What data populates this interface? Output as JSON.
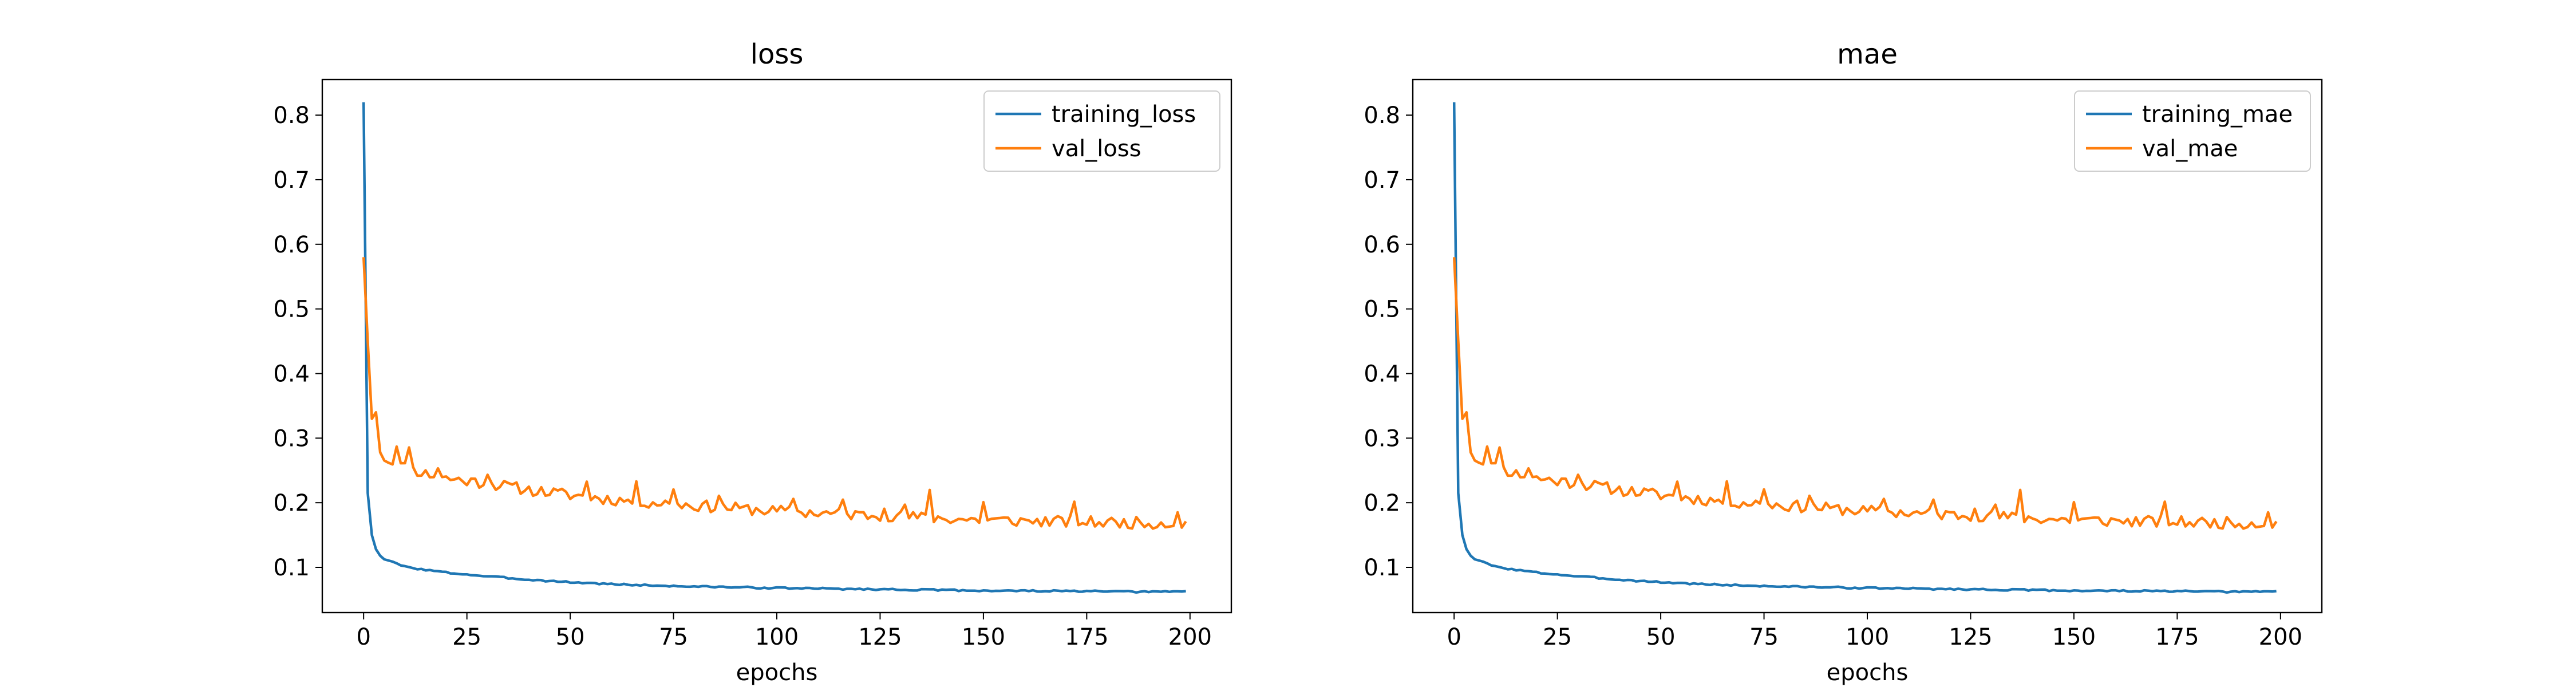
{
  "chart_data": [
    {
      "type": "line",
      "title": "loss",
      "xlabel": "epochs",
      "ylabel": "",
      "xlim": [
        -10,
        210
      ],
      "ylim": [
        0.03,
        0.855
      ],
      "xticks": [
        0,
        25,
        50,
        75,
        100,
        125,
        150,
        175,
        200
      ],
      "yticks": [
        0.1,
        0.2,
        0.3,
        0.4,
        0.5,
        0.6,
        0.7,
        0.8
      ],
      "grid": false,
      "legend_position": "top-right",
      "series": [
        {
          "name": "training_loss",
          "color": "#1f77b4",
          "anchors": [
            [
              0,
              0.82
            ],
            [
              1,
              0.215
            ],
            [
              2,
              0.15
            ],
            [
              3,
              0.128
            ],
            [
              4,
              0.118
            ],
            [
              5,
              0.113
            ],
            [
              7,
              0.108
            ],
            [
              10,
              0.101
            ],
            [
              15,
              0.096
            ],
            [
              20,
              0.092
            ],
            [
              30,
              0.086
            ],
            [
              40,
              0.081
            ],
            [
              50,
              0.077
            ],
            [
              60,
              0.074
            ],
            [
              75,
              0.071
            ],
            [
              100,
              0.068
            ],
            [
              125,
              0.066
            ],
            [
              150,
              0.064
            ],
            [
              175,
              0.063
            ],
            [
              190,
              0.062
            ],
            [
              199,
              0.063
            ]
          ],
          "noise": 0.0012,
          "seed": 3
        },
        {
          "name": "val_loss",
          "color": "#ff7f0e",
          "anchors": [
            [
              0,
              0.58
            ],
            [
              1,
              0.45
            ],
            [
              2,
              0.33
            ],
            [
              3,
              0.34
            ],
            [
              4,
              0.278
            ],
            [
              5,
              0.27
            ],
            [
              7,
              0.262
            ],
            [
              10,
              0.255
            ],
            [
              15,
              0.245
            ],
            [
              20,
              0.238
            ],
            [
              30,
              0.23
            ],
            [
              40,
              0.22
            ],
            [
              50,
              0.212
            ],
            [
              60,
              0.205
            ],
            [
              75,
              0.198
            ],
            [
              100,
              0.187
            ],
            [
              125,
              0.18
            ],
            [
              150,
              0.173
            ],
            [
              175,
              0.17
            ],
            [
              199,
              0.168
            ]
          ],
          "noise": 0.009,
          "seed": 11,
          "spikes": [
            [
              8,
              0.035
            ],
            [
              11,
              0.04
            ],
            [
              18,
              0.015
            ],
            [
              30,
              0.02
            ],
            [
              54,
              0.025
            ],
            [
              66,
              0.022
            ],
            [
              75,
              0.028
            ],
            [
              86,
              0.02
            ],
            [
              104,
              0.025
            ],
            [
              116,
              0.02
            ],
            [
              126,
              0.02
            ],
            [
              131,
              0.02
            ],
            [
              137,
              0.045
            ],
            [
              150,
              0.028
            ],
            [
              172,
              0.025
            ],
            [
              197,
              0.02
            ]
          ]
        }
      ]
    },
    {
      "type": "line",
      "title": "mae",
      "xlabel": "epochs",
      "ylabel": "",
      "xlim": [
        -10,
        210
      ],
      "ylim": [
        0.03,
        0.855
      ],
      "xticks": [
        0,
        25,
        50,
        75,
        100,
        125,
        150,
        175,
        200
      ],
      "yticks": [
        0.1,
        0.2,
        0.3,
        0.4,
        0.5,
        0.6,
        0.7,
        0.8
      ],
      "grid": false,
      "legend_position": "top-right",
      "series": [
        {
          "name": "training_mae",
          "color": "#1f77b4",
          "anchors": [
            [
              0,
              0.82
            ],
            [
              1,
              0.215
            ],
            [
              2,
              0.15
            ],
            [
              3,
              0.128
            ],
            [
              4,
              0.118
            ],
            [
              5,
              0.113
            ],
            [
              7,
              0.108
            ],
            [
              10,
              0.101
            ],
            [
              15,
              0.096
            ],
            [
              20,
              0.092
            ],
            [
              30,
              0.086
            ],
            [
              40,
              0.081
            ],
            [
              50,
              0.077
            ],
            [
              60,
              0.074
            ],
            [
              75,
              0.071
            ],
            [
              100,
              0.068
            ],
            [
              125,
              0.066
            ],
            [
              150,
              0.064
            ],
            [
              175,
              0.063
            ],
            [
              190,
              0.062
            ],
            [
              199,
              0.063
            ]
          ],
          "noise": 0.0012,
          "seed": 3
        },
        {
          "name": "val_mae",
          "color": "#ff7f0e",
          "anchors": [
            [
              0,
              0.58
            ],
            [
              1,
              0.45
            ],
            [
              2,
              0.33
            ],
            [
              3,
              0.34
            ],
            [
              4,
              0.278
            ],
            [
              5,
              0.27
            ],
            [
              7,
              0.262
            ],
            [
              10,
              0.255
            ],
            [
              15,
              0.245
            ],
            [
              20,
              0.238
            ],
            [
              30,
              0.23
            ],
            [
              40,
              0.22
            ],
            [
              50,
              0.212
            ],
            [
              60,
              0.205
            ],
            [
              75,
              0.198
            ],
            [
              100,
              0.187
            ],
            [
              125,
              0.18
            ],
            [
              150,
              0.173
            ],
            [
              175,
              0.17
            ],
            [
              199,
              0.168
            ]
          ],
          "noise": 0.009,
          "seed": 11,
          "spikes": [
            [
              8,
              0.035
            ],
            [
              11,
              0.04
            ],
            [
              18,
              0.015
            ],
            [
              30,
              0.02
            ],
            [
              54,
              0.025
            ],
            [
              66,
              0.022
            ],
            [
              75,
              0.028
            ],
            [
              86,
              0.02
            ],
            [
              104,
              0.025
            ],
            [
              116,
              0.02
            ],
            [
              126,
              0.02
            ],
            [
              131,
              0.02
            ],
            [
              137,
              0.045
            ],
            [
              150,
              0.028
            ],
            [
              172,
              0.025
            ],
            [
              197,
              0.02
            ]
          ]
        }
      ]
    }
  ]
}
